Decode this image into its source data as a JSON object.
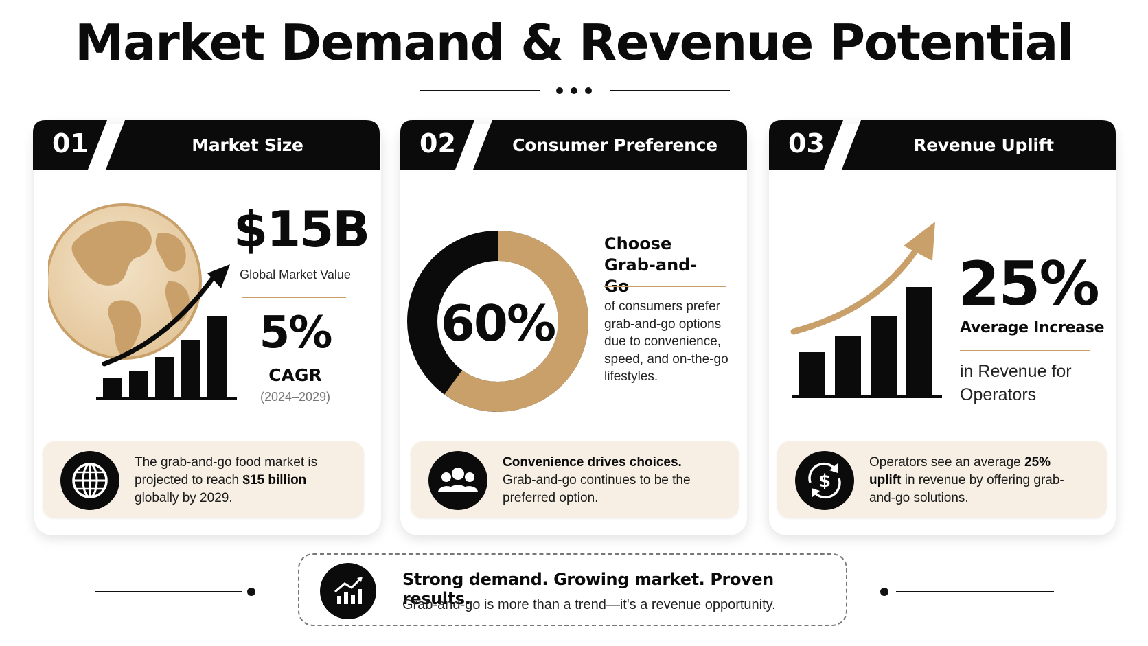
{
  "title": "Market Demand & Revenue Potential",
  "colors": {
    "accent": "#c9a06a",
    "dark": "#0b0b0b",
    "note_bg": "#f7efe4"
  },
  "cards": [
    {
      "num": "01",
      "label": "Market Size",
      "stat_value": "$15B",
      "stat_caption": "Global Market Value",
      "secondary_value": "5%",
      "secondary_label": "CAGR",
      "secondary_range": "(2024–2029)",
      "illustration": "globe-bar-chart-icon",
      "note_icon": "globe-icon",
      "note_pre": "The grab-and-go food market is projected to reach ",
      "note_bold": "$15 billion",
      "note_post": " globally by 2029."
    },
    {
      "num": "02",
      "label": "Consumer Preference",
      "donut_value": "60%",
      "donut_fraction": 0.6,
      "headline": "Choose Grab-and-Go",
      "description": "of consumers prefer grab-and-go options due to convenience, speed, and on-the-go lifestyles.",
      "note_icon": "people-icon",
      "note_bold": "Convenience drives choices.",
      "note_post": "Grab-and-go continues to be the preferred option."
    },
    {
      "num": "03",
      "label": "Revenue Uplift",
      "stat_value": "25%",
      "stat_caption": "Average Increase",
      "description": "in Revenue for Operators",
      "illustration": "rising-bar-chart-icon",
      "note_icon": "dollar-cycle-icon",
      "note_pre": "Operators see an average ",
      "note_bold": "25% uplift",
      "note_post": " in revenue by offering grab-and-go solutions."
    }
  ],
  "footer": {
    "icon": "trend-chart-icon",
    "headline": "Strong demand. Growing market. Proven results.",
    "tagline": "Grab-and-go is more than a trend—it's a revenue opportunity."
  }
}
